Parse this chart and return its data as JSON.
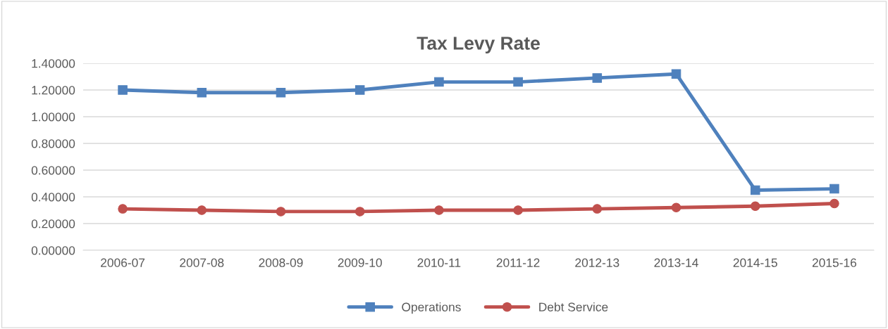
{
  "chart_data": {
    "type": "line",
    "title": "Tax Levy Rate",
    "categories": [
      "2006-07",
      "2007-08",
      "2008-09",
      "2009-10",
      "2010-11",
      "2011-12",
      "2012-13",
      "2013-14",
      "2014-15",
      "2015-16"
    ],
    "series": [
      {
        "name": "Operations",
        "color": "#4f81bd",
        "marker": "square",
        "values": [
          1.2,
          1.18,
          1.18,
          1.2,
          1.26,
          1.26,
          1.29,
          1.32,
          0.45,
          0.46
        ]
      },
      {
        "name": "Debt Service",
        "color": "#c0504d",
        "marker": "circle",
        "values": [
          0.31,
          0.3,
          0.29,
          0.29,
          0.3,
          0.3,
          0.31,
          0.32,
          0.33,
          0.35
        ]
      }
    ],
    "ylim": [
      0,
      1.4
    ],
    "yticks": [
      {
        "value": 0,
        "label": "0.00000"
      },
      {
        "value": 0.2,
        "label": "0.20000"
      },
      {
        "value": 0.4,
        "label": "0.40000"
      },
      {
        "value": 0.6,
        "label": "0.60000"
      },
      {
        "value": 0.8,
        "label": "0.80000"
      },
      {
        "value": 1.0,
        "label": "1.00000"
      },
      {
        "value": 1.2,
        "label": "1.20000"
      },
      {
        "value": 1.4,
        "label": "1.40000"
      }
    ],
    "grid": "y",
    "legend": "bottom",
    "line_style": "solid"
  }
}
